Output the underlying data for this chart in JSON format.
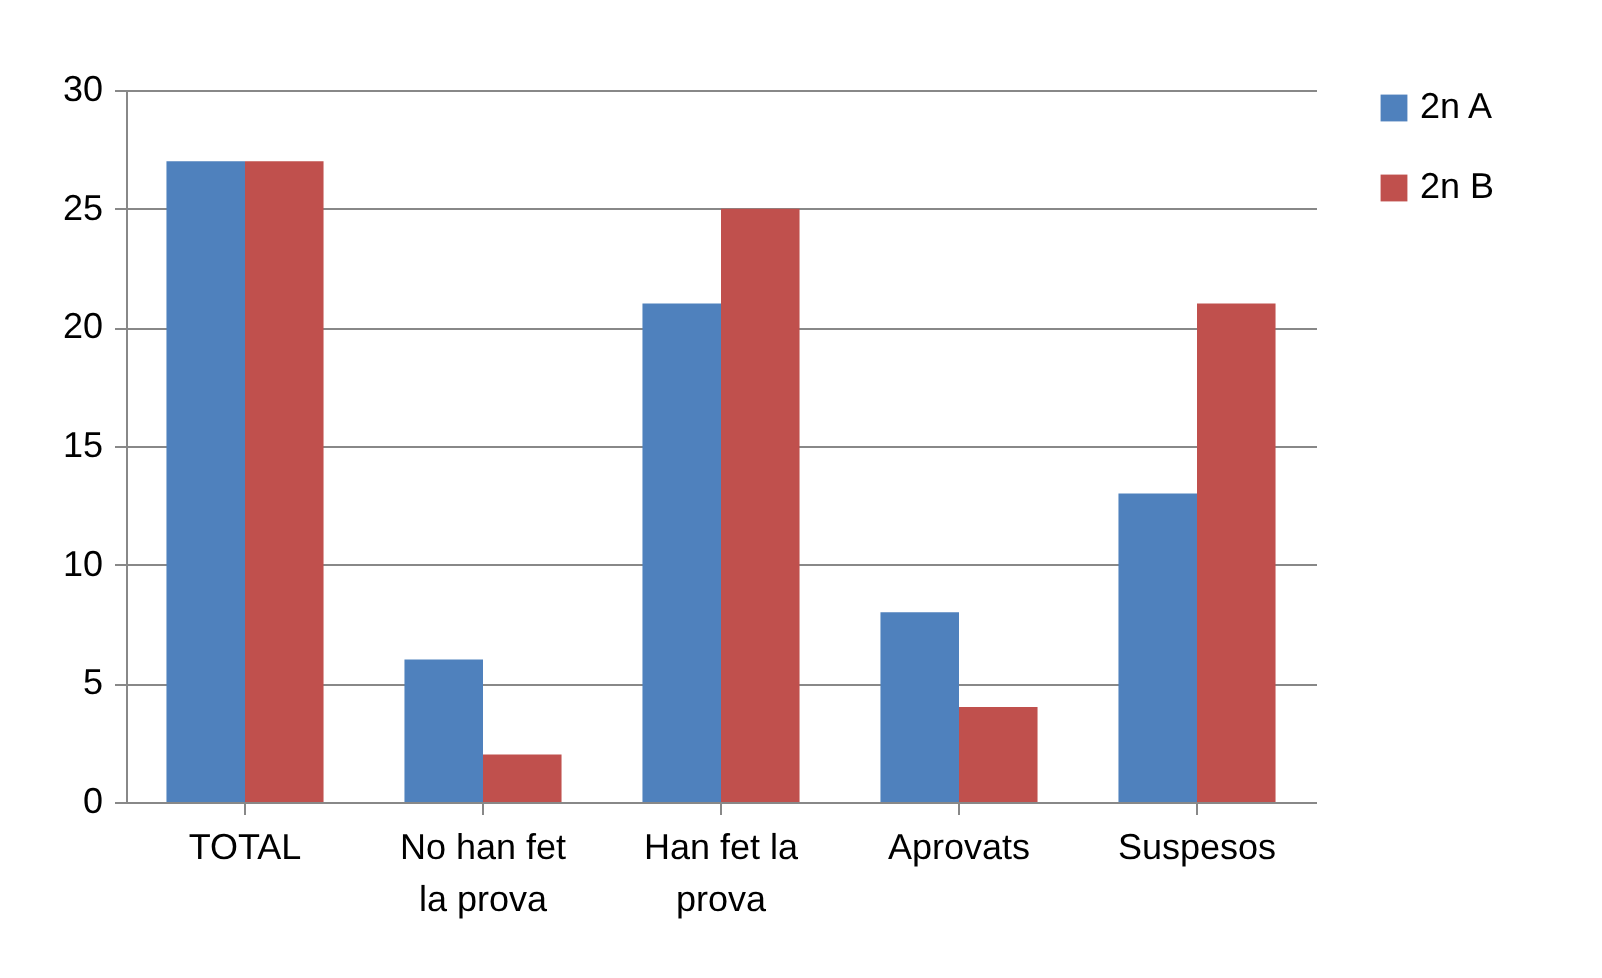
{
  "chart_data": {
    "type": "bar",
    "categories": [
      "TOTAL",
      "No han fet la prova",
      "Han fet la prova",
      "Aprovats",
      "Suspesos"
    ],
    "series": [
      {
        "name": "2n A",
        "color": "#4f81bd",
        "values": [
          27,
          6,
          21,
          8,
          13
        ]
      },
      {
        "name": "2n B",
        "color": "#c0504d",
        "values": [
          27,
          2,
          25,
          4,
          21
        ]
      }
    ],
    "ylim": [
      0,
      30
    ],
    "yticks": [
      0,
      5,
      10,
      15,
      20,
      25,
      30
    ],
    "grid": "y",
    "legend": "right"
  }
}
